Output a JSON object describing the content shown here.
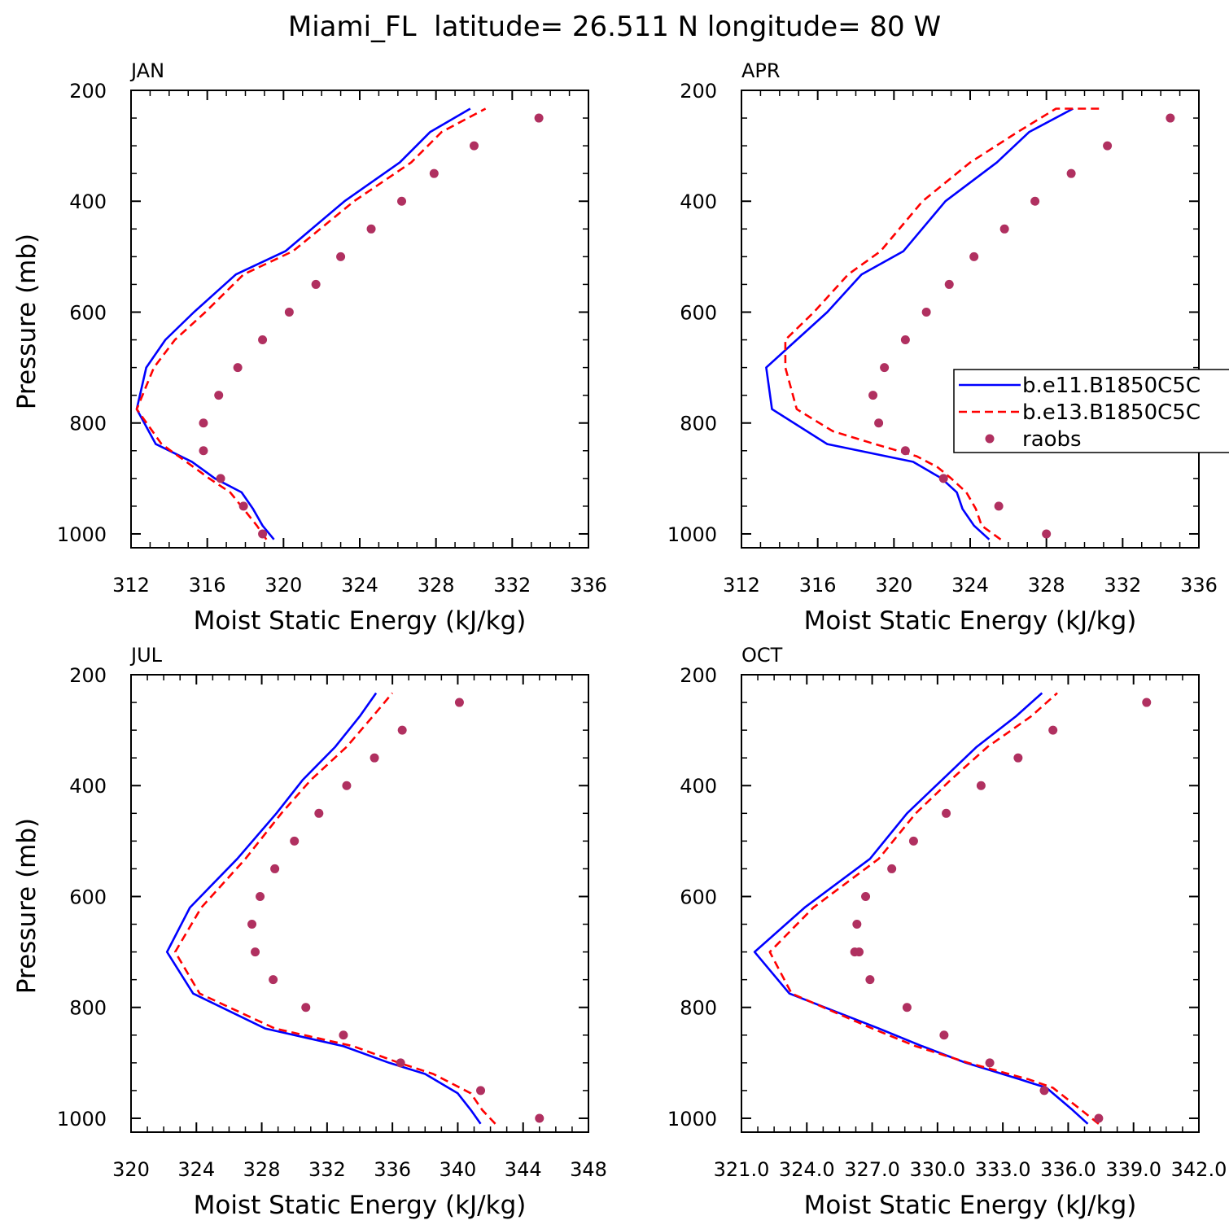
{
  "figure": {
    "title": "Miami_FL  latitude= 26.511 N longitude= 80 W"
  },
  "colors": {
    "b_e11": "#0000ff",
    "b_e13": "#ff0000",
    "raobs": "#b03060",
    "axes": "#000000"
  },
  "legend": {
    "panel": 1,
    "entries": [
      {
        "label": "b.e11.B1850C5C",
        "style": "solid-line",
        "color": "#0000ff"
      },
      {
        "label": "b.e13.B1850C5C",
        "style": "dashed-line",
        "color": "#ff0000"
      },
      {
        "label": "raobs",
        "style": "marker",
        "color": "#b03060"
      }
    ]
  },
  "chart_data": [
    {
      "type": "line",
      "panel_label": "JAN",
      "xlabel": "Moist Static Energy (kJ/kg)",
      "ylabel": "Pressure (mb)",
      "xlim": [
        312,
        336
      ],
      "xticks": [
        312,
        316,
        320,
        324,
        328,
        332,
        336
      ],
      "xtick_labels": [
        "312",
        "316",
        "320",
        "324",
        "328",
        "332",
        "336"
      ],
      "ylim": [
        200,
        1025
      ],
      "yticks": [
        200,
        400,
        600,
        800,
        1000
      ],
      "ytick_labels": [
        "200",
        "400",
        "600",
        "800",
        "1000"
      ],
      "y_inverted": true,
      "series": [
        {
          "name": "b.e11.B1850C5C",
          "style": "solid",
          "x": [
            319.5,
            318.9,
            318.4,
            317.8,
            316.4,
            315.2,
            313.3,
            312.3,
            312.8,
            313.8,
            315.3,
            317.5,
            320.1,
            323.2,
            326.1,
            327.7,
            329.8
          ],
          "y": [
            1010,
            985,
            955,
            925,
            900,
            870,
            838,
            775,
            700,
            650,
            600,
            532,
            490,
            400,
            330,
            275,
            233
          ]
        },
        {
          "name": "b.e13.B1850C5C",
          "style": "dashed",
          "x": [
            319.1,
            318.6,
            317.9,
            317.2,
            316.1,
            314.9,
            313.6,
            312.3,
            313.2,
            314.3,
            315.9,
            317.9,
            320.5,
            323.7,
            326.7,
            328.3,
            330.6
          ],
          "y": [
            1010,
            985,
            955,
            925,
            900,
            870,
            838,
            775,
            700,
            650,
            600,
            532,
            490,
            400,
            330,
            275,
            233
          ]
        },
        {
          "name": "raobs",
          "style": "points",
          "x": [
            318.9,
            317.9,
            316.7,
            315.8,
            315.8,
            316.6,
            317.6,
            318.9,
            320.3,
            321.7,
            323.0,
            324.6,
            326.2,
            327.9,
            330.0,
            333.4
          ],
          "y": [
            1000,
            950,
            900,
            850,
            800,
            750,
            700,
            650,
            600,
            550,
            500,
            450,
            400,
            350,
            300,
            250
          ]
        }
      ]
    },
    {
      "type": "line",
      "panel_label": "APR",
      "xlabel": "Moist Static Energy (kJ/kg)",
      "ylabel": "",
      "xlim": [
        312,
        336
      ],
      "xticks": [
        312,
        316,
        320,
        324,
        328,
        332,
        336
      ],
      "xtick_labels": [
        "312",
        "316",
        "320",
        "324",
        "328",
        "332",
        "336"
      ],
      "ylim": [
        200,
        1025
      ],
      "yticks": [
        200,
        400,
        600,
        800,
        1000
      ],
      "ytick_labels": [
        "200",
        "400",
        "600",
        "800",
        "1000"
      ],
      "y_inverted": true,
      "series": [
        {
          "name": "b.e11.B1850C5C",
          "style": "solid",
          "x": [
            325.0,
            324.2,
            323.6,
            323.3,
            322.5,
            321.0,
            316.5,
            313.6,
            313.3,
            314.9,
            316.5,
            318.3,
            320.5,
            322.7,
            325.4,
            327.1,
            329.4
          ],
          "y": [
            1010,
            985,
            955,
            925,
            900,
            870,
            838,
            775,
            700,
            650,
            600,
            532,
            490,
            400,
            330,
            275,
            233
          ]
        },
        {
          "name": "b.e13.B1850C5C",
          "style": "dashed",
          "x": [
            325.6,
            324.6,
            324.3,
            323.8,
            323.0,
            322.3,
            321.2,
            319.0,
            316.8,
            314.9,
            314.3,
            314.3,
            315.8,
            317.6,
            319.3,
            321.5,
            324.0,
            326.5,
            328.5,
            330.8
          ],
          "y": [
            1010,
            985,
            955,
            925,
            900,
            880,
            860,
            838,
            815,
            775,
            700,
            650,
            600,
            532,
            490,
            400,
            330,
            275,
            233,
            233
          ]
        },
        {
          "name": "raobs",
          "style": "points",
          "x": [
            328.0,
            325.5,
            322.6,
            320.6,
            319.2,
            318.9,
            319.5,
            320.6,
            321.7,
            322.9,
            324.2,
            325.8,
            327.4,
            329.3,
            331.2,
            334.5
          ],
          "y": [
            1000,
            950,
            900,
            850,
            800,
            750,
            700,
            650,
            600,
            550,
            500,
            450,
            400,
            350,
            300,
            250
          ]
        }
      ]
    },
    {
      "type": "line",
      "panel_label": "JUL",
      "xlabel": "Moist Static Energy (kJ/kg)",
      "ylabel": "Pressure (mb)",
      "xlim": [
        320,
        348
      ],
      "xticks": [
        320,
        324,
        328,
        332,
        336,
        340,
        344,
        348
      ],
      "xtick_labels": [
        "320",
        "324",
        "328",
        "332",
        "336",
        "340",
        "344",
        "348"
      ],
      "ylim": [
        200,
        1025
      ],
      "yticks": [
        200,
        400,
        600,
        800,
        1000
      ],
      "ytick_labels": [
        "200",
        "400",
        "600",
        "800",
        "1000"
      ],
      "y_inverted": true,
      "series": [
        {
          "name": "b.e11.B1850C5C",
          "style": "solid",
          "x": [
            341.4,
            340.8,
            340.0,
            338.0,
            335.8,
            333.0,
            328.2,
            323.8,
            322.2,
            323.6,
            326.5,
            328.9,
            330.5,
            332.5,
            334.0,
            335.0
          ],
          "y": [
            1010,
            985,
            955,
            920,
            900,
            870,
            838,
            775,
            700,
            620,
            532,
            450,
            390,
            330,
            275,
            233
          ]
        },
        {
          "name": "b.e13.B1850C5C",
          "style": "dashed",
          "x": [
            342.3,
            341.5,
            340.8,
            338.5,
            336.4,
            333.6,
            328.8,
            324.2,
            322.7,
            324.3,
            327.0,
            329.2,
            331.0,
            333.2,
            334.8,
            336.0
          ],
          "y": [
            1010,
            985,
            955,
            920,
            900,
            870,
            838,
            775,
            700,
            620,
            532,
            450,
            390,
            330,
            275,
            233
          ]
        },
        {
          "name": "raobs",
          "style": "points",
          "x": [
            345.0,
            341.4,
            336.5,
            333.0,
            330.7,
            328.7,
            327.6,
            327.4,
            327.9,
            328.8,
            330.0,
            331.5,
            333.2,
            334.9,
            336.6,
            340.1
          ],
          "y": [
            1000,
            950,
            900,
            850,
            800,
            750,
            700,
            650,
            600,
            550,
            500,
            450,
            400,
            350,
            300,
            250
          ]
        }
      ]
    },
    {
      "type": "line",
      "panel_label": "OCT",
      "xlabel": "Moist Static Energy (kJ/kg)",
      "ylabel": "",
      "xlim": [
        321.0,
        342.0
      ],
      "xticks": [
        321.0,
        324.0,
        327.0,
        330.0,
        333.0,
        336.0,
        339.0,
        342.0
      ],
      "xtick_labels": [
        "321.0",
        "324.0",
        "327.0",
        "330.0",
        "333.0",
        "336.0",
        "339.0",
        "342.0"
      ],
      "ylim": [
        200,
        1025
      ],
      "yticks": [
        200,
        400,
        600,
        800,
        1000
      ],
      "ytick_labels": [
        "200",
        "400",
        "600",
        "800",
        "1000"
      ],
      "y_inverted": true,
      "series": [
        {
          "name": "b.e11.B1850C5C",
          "style": "solid",
          "x": [
            336.9,
            336.2,
            335.0,
            333.8,
            331.3,
            329.3,
            327.3,
            323.2,
            321.6,
            323.9,
            326.9,
            328.6,
            330.2,
            331.8,
            333.6,
            334.8
          ],
          "y": [
            1010,
            985,
            945,
            930,
            900,
            870,
            838,
            775,
            700,
            620,
            532,
            450,
            390,
            330,
            275,
            233
          ]
        },
        {
          "name": "b.e13.B1850C5C",
          "style": "dashed",
          "x": [
            337.4,
            336.6,
            335.3,
            334.2,
            331.4,
            329.0,
            327.0,
            323.3,
            322.3,
            324.3,
            327.3,
            329.0,
            330.6,
            332.3,
            334.3,
            335.5
          ],
          "y": [
            1010,
            985,
            945,
            930,
            900,
            870,
            838,
            775,
            700,
            620,
            532,
            450,
            390,
            330,
            275,
            233
          ]
        },
        {
          "name": "raobs",
          "style": "points",
          "x": [
            337.4,
            334.9,
            332.4,
            330.3,
            328.6,
            326.9,
            326.4,
            326.2,
            326.3,
            326.7,
            327.9,
            328.9,
            330.4,
            332.0,
            333.7,
            335.3,
            339.6
          ],
          "y": [
            1000,
            950,
            900,
            850,
            800,
            750,
            700,
            700,
            650,
            600,
            550,
            500,
            450,
            400,
            350,
            300,
            250
          ]
        }
      ]
    }
  ]
}
